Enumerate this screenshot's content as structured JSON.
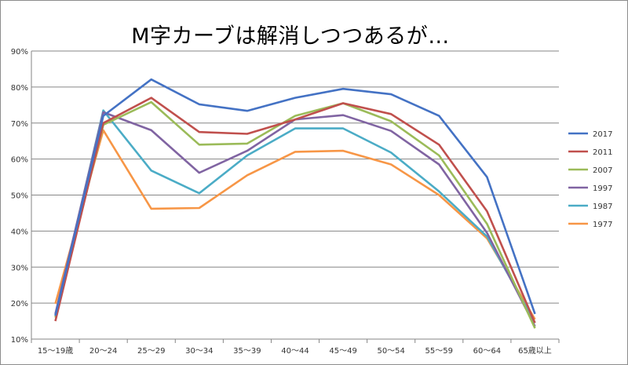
{
  "chart_data": {
    "type": "line",
    "title": "M字カーブは解消しつつあるが…",
    "xlabel": "",
    "ylabel": "",
    "categories": [
      "15～19歳",
      "20～24",
      "25～29",
      "30～34",
      "35～39",
      "40～44",
      "45～49",
      "50～54",
      "55～59",
      "60～64",
      "65歳以上"
    ],
    "yticks": [
      "10%",
      "20%",
      "30%",
      "40%",
      "50%",
      "60%",
      "70%",
      "80%",
      "90%"
    ],
    "ylim": [
      10,
      90
    ],
    "grid": true,
    "legend_position": "right",
    "series": [
      {
        "name": "2017",
        "color": "#4472c4",
        "values": [
          16.5,
          72.0,
          82.1,
          75.2,
          73.4,
          77.0,
          79.5,
          78.0,
          72.0,
          55.0,
          17.0
        ]
      },
      {
        "name": "2011",
        "color": "#c0504d",
        "values": [
          15.0,
          70.0,
          77.0,
          67.5,
          67.0,
          71.0,
          75.5,
          72.5,
          64.0,
          45.5,
          14.5
        ]
      },
      {
        "name": "2007",
        "color": "#9bbb59",
        "values": [
          16.0,
          69.5,
          75.8,
          64.0,
          64.3,
          72.0,
          75.5,
          70.5,
          61.0,
          42.0,
          13.0
        ]
      },
      {
        "name": "1997",
        "color": "#8064a2",
        "values": [
          17.0,
          73.0,
          68.0,
          56.2,
          62.3,
          71.0,
          72.2,
          67.8,
          58.5,
          39.5,
          13.5
        ]
      },
      {
        "name": "1987",
        "color": "#4bacc6",
        "values": [
          16.5,
          73.5,
          56.8,
          50.5,
          61.0,
          68.5,
          68.5,
          61.8,
          51.0,
          38.5,
          14.5
        ]
      },
      {
        "name": "1977",
        "color": "#f79646",
        "values": [
          19.8,
          68.0,
          46.2,
          46.4,
          55.5,
          62.0,
          62.3,
          58.5,
          50.0,
          38.0,
          15.5
        ]
      }
    ]
  }
}
